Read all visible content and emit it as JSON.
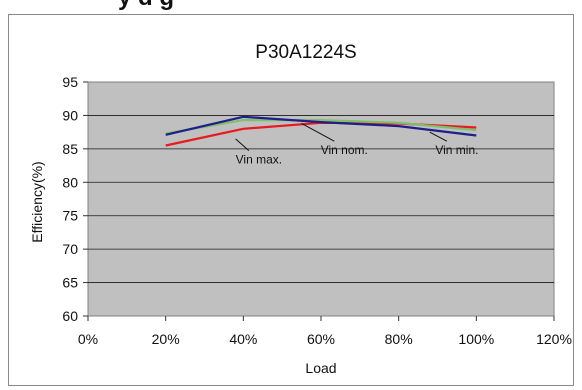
{
  "header": {
    "cropped_text": "y    d        g"
  },
  "chart_data": {
    "type": "line",
    "title": "P30A1224S",
    "xlabel": "Load",
    "ylabel": "Efficiency(%)",
    "xlim": [
      0,
      120
    ],
    "ylim": [
      60,
      95
    ],
    "x_ticks": [
      "0%",
      "20%",
      "40%",
      "60%",
      "80%",
      "100%",
      "120%"
    ],
    "y_ticks": [
      "60",
      "65",
      "70",
      "75",
      "80",
      "85",
      "90",
      "95"
    ],
    "grid": true,
    "legend": "none",
    "series": [
      {
        "name": "Vin max.",
        "color": "#e8191f",
        "x": [
          20,
          40,
          60,
          80,
          100
        ],
        "values": [
          85.5,
          88.0,
          88.9,
          88.8,
          88.2
        ]
      },
      {
        "name": "Vin nom.",
        "color": "#7fbf6a",
        "x": [
          20,
          40,
          60,
          80,
          100
        ],
        "values": [
          87.3,
          89.3,
          89.3,
          88.9,
          87.8
        ]
      },
      {
        "name": "Vin min.",
        "color": "#1e1e8c",
        "x": [
          20,
          40,
          60,
          80,
          100
        ],
        "values": [
          87.1,
          89.8,
          89.0,
          88.4,
          87.0
        ]
      }
    ],
    "annotations": [
      {
        "text": "Vin max.",
        "x": 44,
        "y": 82.8,
        "arrow_to": [
          38,
          86.5
        ]
      },
      {
        "text": "Vin nom.",
        "x": 66,
        "y": 84.2,
        "arrow_to": [
          55,
          88.8
        ]
      },
      {
        "text": "Vin min.",
        "x": 95,
        "y": 84.2,
        "arrow_to": [
          88,
          87.5
        ]
      }
    ]
  }
}
